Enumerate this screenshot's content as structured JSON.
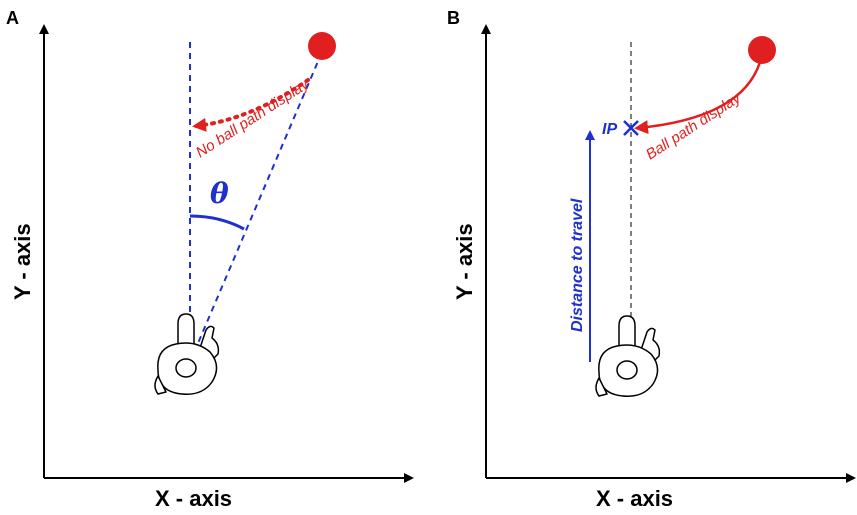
{
  "panel_a": {
    "label": "A",
    "y_axis_label": "Y - axis",
    "x_axis_label": "X - axis",
    "theta_symbol": "θ",
    "path_text": "No ball path display"
  },
  "panel_b": {
    "label": "B",
    "y_axis_label": "Y - axis",
    "x_axis_label": "X - axis",
    "ip_label": "IP",
    "path_text": "Ball path display",
    "distance_text": "Distance to travel"
  },
  "colors": {
    "red": "#e0201e",
    "blue": "#1f2fd0",
    "black": "#000000"
  }
}
